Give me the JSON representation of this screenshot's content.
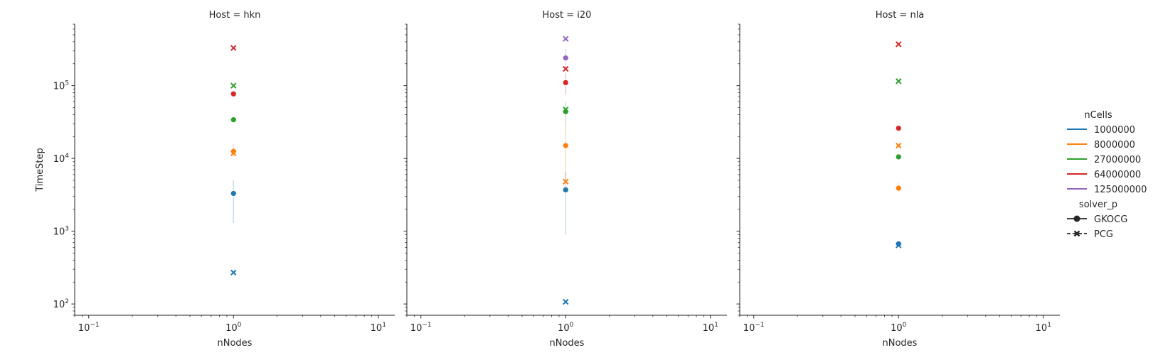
{
  "chart_data": {
    "type": "scatter",
    "x_scale": "log",
    "y_scale": "log",
    "xlabel": "nNodes",
    "ylabel": "TimeStep",
    "xlim": [
      0.08,
      13
    ],
    "ylim": [
      70,
      700000
    ],
    "x_ticks": [
      {
        "value": 0.1,
        "base": "10",
        "exp": "−1"
      },
      {
        "value": 1,
        "base": "10",
        "exp": "0"
      },
      {
        "value": 10,
        "base": "10",
        "exp": "1"
      }
    ],
    "y_ticks": [
      {
        "value": 100,
        "base": "10",
        "exp": "2"
      },
      {
        "value": 1000,
        "base": "10",
        "exp": "3"
      },
      {
        "value": 10000,
        "base": "10",
        "exp": "4"
      },
      {
        "value": 100000,
        "base": "10",
        "exp": "5"
      }
    ],
    "grid": false,
    "legend_placement": "right",
    "hue_title": "nCells",
    "hue": [
      {
        "label": "1000000",
        "color": "#1f77b4"
      },
      {
        "label": "8000000",
        "color": "#ff7f0e"
      },
      {
        "label": "27000000",
        "color": "#2ca02c"
      },
      {
        "label": "64000000",
        "color": "#d62728"
      },
      {
        "label": "125000000",
        "color": "#9467bd"
      }
    ],
    "style_title": "solver_p",
    "style": [
      {
        "label": "GKOCG",
        "marker": "circle"
      },
      {
        "label": "PCG",
        "marker": "x"
      }
    ],
    "panels": [
      {
        "title": "Host = hkn",
        "points": [
          {
            "nCells": 0,
            "solver": 0,
            "x": 1,
            "y": 3300,
            "err": [
              1300,
              5000
            ]
          },
          {
            "nCells": 0,
            "solver": 1,
            "x": 1,
            "y": 270
          },
          {
            "nCells": 1,
            "solver": 0,
            "x": 1,
            "y": 12500,
            "err": [
              10500,
              16000
            ]
          },
          {
            "nCells": 1,
            "solver": 1,
            "x": 1,
            "y": 11800
          },
          {
            "nCells": 2,
            "solver": 0,
            "x": 1,
            "y": 34000
          },
          {
            "nCells": 2,
            "solver": 1,
            "x": 1,
            "y": 100000
          },
          {
            "nCells": 3,
            "solver": 0,
            "x": 1,
            "y": 77000
          },
          {
            "nCells": 3,
            "solver": 1,
            "x": 1,
            "y": 330000
          }
        ]
      },
      {
        "title": "Host = i20",
        "points": [
          {
            "nCells": 0,
            "solver": 0,
            "x": 1,
            "y": 3700,
            "err": [
              900,
              6500
            ]
          },
          {
            "nCells": 0,
            "solver": 1,
            "x": 1,
            "y": 107
          },
          {
            "nCells": 1,
            "solver": 0,
            "x": 1,
            "y": 15000,
            "err": [
              5000,
              28000
            ]
          },
          {
            "nCells": 1,
            "solver": 1,
            "x": 1,
            "y": 4800
          },
          {
            "nCells": 2,
            "solver": 0,
            "x": 1,
            "y": 44000,
            "err": [
              28000,
              60000
            ]
          },
          {
            "nCells": 2,
            "solver": 1,
            "x": 1,
            "y": 47000
          },
          {
            "nCells": 3,
            "solver": 0,
            "x": 1,
            "y": 110000,
            "err": [
              75000,
              150000
            ]
          },
          {
            "nCells": 3,
            "solver": 1,
            "x": 1,
            "y": 170000
          },
          {
            "nCells": 4,
            "solver": 0,
            "x": 1,
            "y": 240000,
            "err": [
              160000,
              320000
            ]
          },
          {
            "nCells": 4,
            "solver": 1,
            "x": 1,
            "y": 440000
          }
        ]
      },
      {
        "title": "Host = nla",
        "points": [
          {
            "nCells": 0,
            "solver": 0,
            "x": 1,
            "y": 670
          },
          {
            "nCells": 0,
            "solver": 1,
            "x": 1,
            "y": 640
          },
          {
            "nCells": 1,
            "solver": 0,
            "x": 1,
            "y": 3900,
            "err": [
              3400,
              4600
            ]
          },
          {
            "nCells": 1,
            "solver": 1,
            "x": 1,
            "y": 15000
          },
          {
            "nCells": 2,
            "solver": 0,
            "x": 1,
            "y": 10500
          },
          {
            "nCells": 2,
            "solver": 1,
            "x": 1,
            "y": 115000
          },
          {
            "nCells": 3,
            "solver": 0,
            "x": 1,
            "y": 26000
          },
          {
            "nCells": 3,
            "solver": 1,
            "x": 1,
            "y": 370000
          }
        ]
      }
    ]
  }
}
